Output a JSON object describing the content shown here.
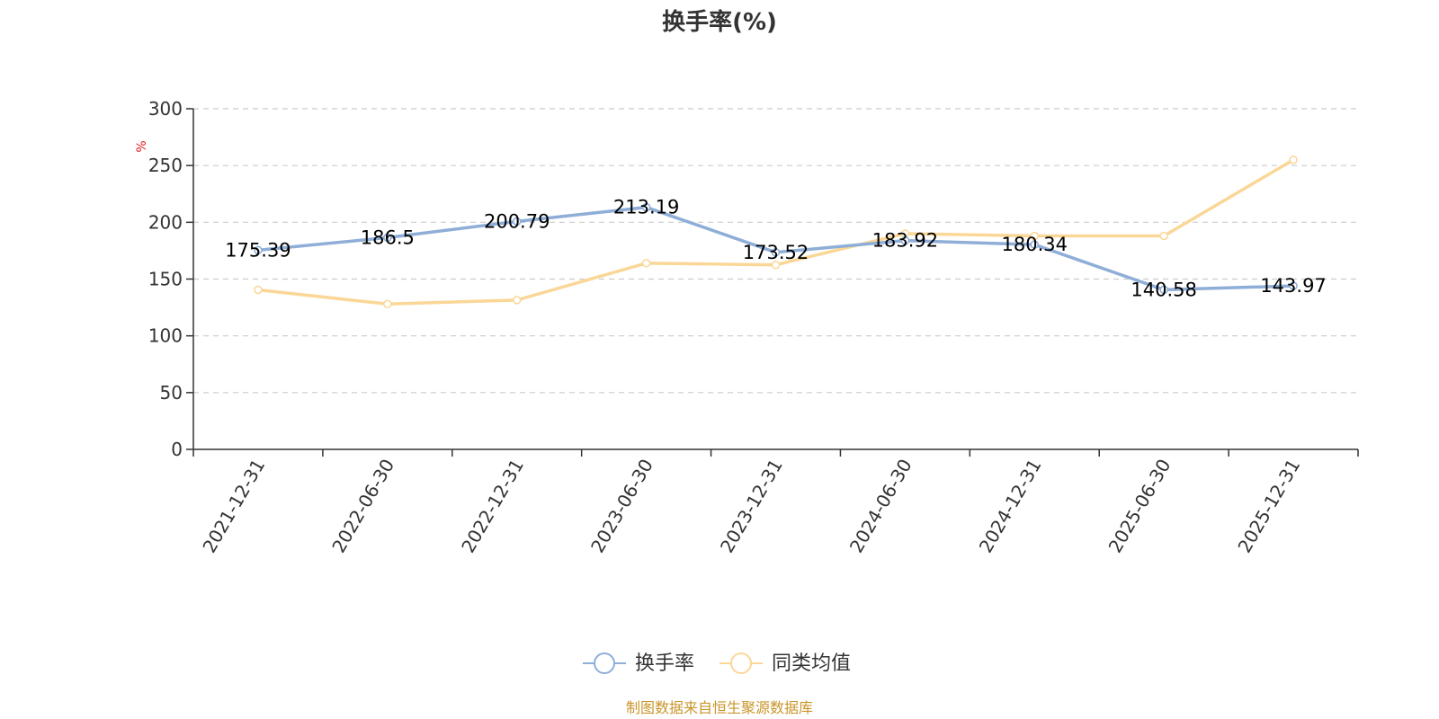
{
  "chart_data": {
    "type": "line",
    "title": "换手率(%)",
    "ylabel": "%",
    "ylim": [
      0,
      300
    ],
    "yticks": [
      0,
      50,
      100,
      150,
      200,
      250,
      300
    ],
    "grid": true,
    "legend_position": "bottom-center",
    "categories": [
      "2021-12-31",
      "2022-06-30",
      "2022-12-31",
      "2023-06-30",
      "2023-12-31",
      "2024-06-30",
      "2024-12-31",
      "2025-06-30",
      "2025-12-31"
    ],
    "series": [
      {
        "name": "换手率",
        "color": "#8eaed8",
        "values": [
          175.39,
          186.5,
          200.79,
          213.19,
          173.52,
          183.92,
          180.34,
          140.58,
          143.97
        ],
        "labels": [
          "175.39",
          "186.5",
          "200.79",
          "213.19",
          "173.52",
          "183.92",
          "180.34",
          "140.58",
          "143.97"
        ]
      },
      {
        "name": "同类均值",
        "color": "#fad797",
        "values": [
          140.5,
          128,
          131.5,
          164,
          162.5,
          190,
          188,
          188,
          255
        ]
      }
    ]
  },
  "unit_color": "#e01f1f",
  "source": {
    "text": "制图数据来自恒生聚源数据库",
    "color": "#c8962a"
  }
}
